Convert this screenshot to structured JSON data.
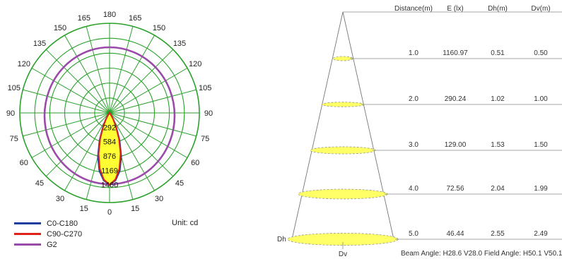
{
  "chart_data": [
    {
      "type": "polar",
      "unit_label": "Unit: cd",
      "angle_labels": [
        "180",
        "165",
        "150",
        "135",
        "120",
        "105",
        "90",
        "75",
        "60",
        "45",
        "30",
        "15",
        "0"
      ],
      "radial_labels": [
        "292",
        "584",
        "876",
        "1169",
        "1460"
      ],
      "radial_max": 1460,
      "series": [
        {
          "name": "C0-C180",
          "color": "#1f3fa0",
          "angles": [
            0,
            5,
            10,
            15,
            20,
            25,
            30,
            35,
            40
          ],
          "values": [
            1460,
            1380,
            1200,
            920,
            600,
            330,
            160,
            60,
            0
          ]
        },
        {
          "name": "C90-C270",
          "color": "#e0211a",
          "angles": [
            0,
            5,
            10,
            15,
            20,
            25,
            30,
            35,
            40
          ],
          "values": [
            1460,
            1360,
            1150,
            860,
            560,
            300,
            140,
            50,
            0
          ]
        },
        {
          "name": "G2",
          "color": "#9a4aa8",
          "angles": [],
          "values": []
        }
      ],
      "fill_color": "#ffff33",
      "grid_color": "#2aa12a"
    },
    {
      "type": "table",
      "columns": [
        "Distance(m)",
        "E (lx)",
        "Dh(m)",
        "Dv(m)"
      ],
      "rows": [
        [
          "1.0",
          "1160.97",
          "0.51",
          "0.50"
        ],
        [
          "2.0",
          "290.24",
          "1.02",
          "1.00"
        ],
        [
          "3.0",
          "129.00",
          "1.53",
          "1.50"
        ],
        [
          "4.0",
          "72.56",
          "2.04",
          "1.99"
        ],
        [
          "5.0",
          "46.44",
          "2.55",
          "2.49"
        ]
      ],
      "dh_label": "Dh",
      "dv_label": "Dv",
      "beam_note": "Beam Angle: H28.6 V28.0  Field Angle: H50.1 V50.1"
    }
  ]
}
